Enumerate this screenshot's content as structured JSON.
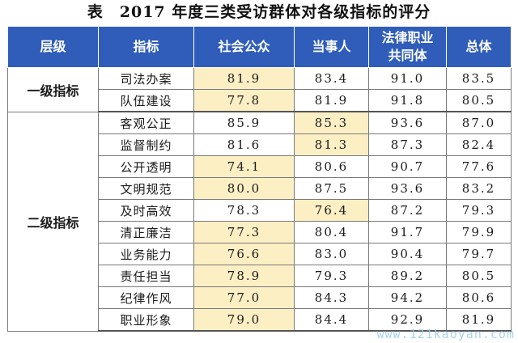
{
  "title": "表　2017 年度三类受访群体对各级指标的评分",
  "headers": [
    "层级",
    "指标",
    "社会公众",
    "当事人",
    "法律职业\n共同体",
    "总体"
  ],
  "groups": [
    {
      "level": "一级指标",
      "rows": [
        {
          "indicator": "司法办案",
          "values": [
            "81.9",
            "83.4",
            "91.0",
            "83.5"
          ],
          "highlight": [
            true,
            false,
            false,
            false
          ]
        },
        {
          "indicator": "队伍建设",
          "values": [
            "77.8",
            "81.9",
            "91.8",
            "80.5"
          ],
          "highlight": [
            true,
            false,
            false,
            false
          ]
        }
      ]
    },
    {
      "level": "二级指标",
      "rows": [
        {
          "indicator": "客观公正",
          "values": [
            "85.9",
            "85.3",
            "93.6",
            "87.0"
          ],
          "highlight": [
            false,
            true,
            false,
            false
          ]
        },
        {
          "indicator": "监督制约",
          "values": [
            "81.6",
            "81.3",
            "87.3",
            "82.4"
          ],
          "highlight": [
            false,
            true,
            false,
            false
          ]
        },
        {
          "indicator": "公开透明",
          "values": [
            "74.1",
            "80.6",
            "90.7",
            "77.6"
          ],
          "highlight": [
            true,
            false,
            false,
            false
          ]
        },
        {
          "indicator": "文明规范",
          "values": [
            "80.0",
            "87.5",
            "93.6",
            "83.2"
          ],
          "highlight": [
            true,
            false,
            false,
            false
          ]
        },
        {
          "indicator": "及时高效",
          "values": [
            "78.3",
            "76.4",
            "87.2",
            "79.3"
          ],
          "highlight": [
            false,
            true,
            false,
            false
          ]
        },
        {
          "indicator": "清正廉洁",
          "values": [
            "77.3",
            "80.4",
            "91.7",
            "79.9"
          ],
          "highlight": [
            true,
            false,
            false,
            false
          ]
        },
        {
          "indicator": "业务能力",
          "values": [
            "76.6",
            "83.0",
            "90.4",
            "79.7"
          ],
          "highlight": [
            true,
            false,
            false,
            false
          ]
        },
        {
          "indicator": "责任担当",
          "values": [
            "78.9",
            "79.3",
            "89.2",
            "80.5"
          ],
          "highlight": [
            true,
            false,
            false,
            false
          ]
        },
        {
          "indicator": "纪律作风",
          "values": [
            "77.0",
            "84.3",
            "94.2",
            "80.6"
          ],
          "highlight": [
            true,
            false,
            false,
            false
          ]
        },
        {
          "indicator": "职业形象",
          "values": [
            "79.0",
            "84.4",
            "92.9",
            "81.9"
          ],
          "highlight": [
            true,
            false,
            false,
            false
          ]
        }
      ]
    }
  ],
  "watermark": "www.121kaoyan.com",
  "colors": {
    "header_bg": "#2f5db9",
    "header_text": "#ffffff",
    "highlight_bg": "#fcefc4",
    "border": "#7a7a7a"
  }
}
